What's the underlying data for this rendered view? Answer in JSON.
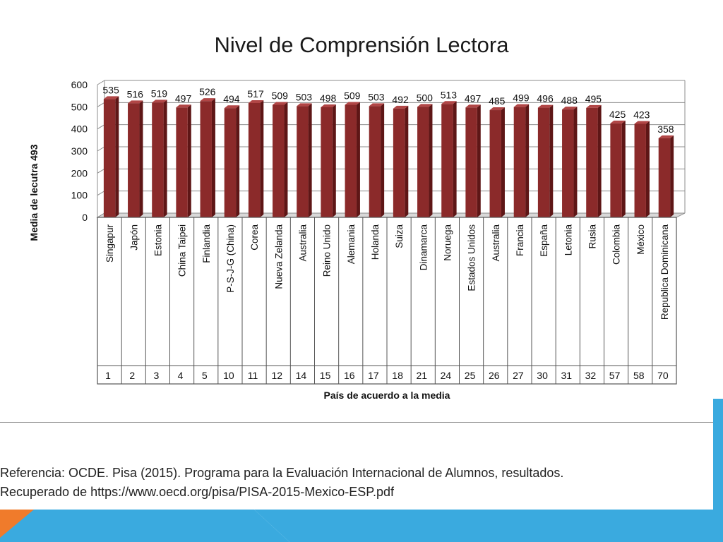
{
  "slide": {
    "reference_line1": "Referencia: OCDE. Pisa (2015). Programa para la Evaluación Internacional de Alumnos, resultados.",
    "reference_line2": "Recuperado de https://www.oecd.org/pisa/PISA-2015-Mexico-ESP.pdf",
    "accent_blue": "#3aaadf",
    "accent_orange": "#f07b2b"
  },
  "chart_data": {
    "type": "bar",
    "title": "Nivel de Comprensión Lectora",
    "ylabel": "Media de lecutra  493",
    "xlabel": "País de acuerdo a la media",
    "ylim": [
      0,
      600
    ],
    "yticks": [
      0,
      100,
      200,
      300,
      400,
      500,
      600
    ],
    "grid": true,
    "bar_color": "#8b2a2a",
    "categories": [
      "Singapur",
      "Japón",
      "Estonia",
      "China Taipei",
      "Finlandia",
      "P-S-J-G (China)",
      "Corea",
      "Nueva Zelanda",
      "Australia",
      "Reino Unido",
      "Alemania",
      "Holanda",
      "Suiza",
      "Dinamarca",
      "Noruega",
      "Estados Unidos",
      "Australia",
      "Francia",
      "España",
      "Letonia",
      "Rusia",
      "Colombia",
      "México",
      "Republica Dominicana"
    ],
    "values": [
      535,
      516,
      519,
      497,
      526,
      494,
      517,
      509,
      503,
      498,
      509,
      503,
      492,
      500,
      513,
      497,
      485,
      499,
      496,
      488,
      495,
      425,
      423,
      358
    ],
    "ranks": [
      "1",
      "2",
      "3",
      "4",
      "5",
      "10",
      "11",
      "12",
      "14",
      "15",
      "16",
      "17",
      "18",
      "21",
      "24",
      "25",
      "26",
      "27",
      "30",
      "31",
      "32",
      "57",
      "58",
      "70"
    ]
  }
}
